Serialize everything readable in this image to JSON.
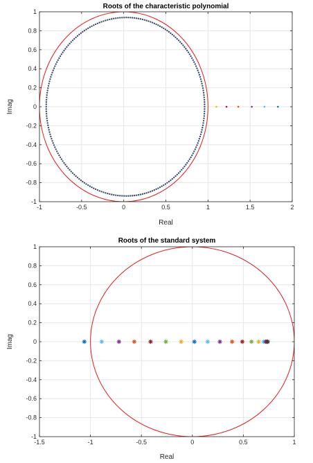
{
  "chart_data": [
    {
      "type": "scatter",
      "title": "Roots of the characteristic polynomial",
      "xlabel": "Real",
      "ylabel": "Imag",
      "xlim": [
        -1,
        2
      ],
      "ylim": [
        -1,
        1
      ],
      "xticks": [
        -1,
        -0.5,
        0,
        0.5,
        1,
        1.5,
        2
      ],
      "xtick_labels": [
        "-1",
        "-0.5",
        "0",
        "0.5",
        "1",
        "1.5",
        "2"
      ],
      "yticks": [
        -1,
        -0.8,
        -0.6,
        -0.4,
        -0.2,
        0,
        0.2,
        0.4,
        0.6,
        0.8,
        1
      ],
      "ytick_labels": [
        "-1",
        "-0.8",
        "-0.6",
        "-0.4",
        "-0.2",
        "0",
        "0.2",
        "0.4",
        "0.6",
        "0.8",
        "1"
      ],
      "grid": true,
      "unit_circle": {
        "center": [
          0,
          0
        ],
        "radius": 1,
        "color": "#e31a1c"
      },
      "root_ring": {
        "marker": "dot",
        "color": "#3a4f6b",
        "count": 240,
        "shape": "near-circle",
        "center_real": 0.03,
        "real_range": [
          -0.92,
          0.96
        ],
        "imag_range": [
          -0.94,
          0.94
        ]
      },
      "real_axis_roots": [
        {
          "x": 1.1,
          "y": 0,
          "color": "#edb120"
        },
        {
          "x": 1.22,
          "y": 0,
          "color": "#a2142f"
        },
        {
          "x": 1.36,
          "y": 0,
          "color": "#d95319"
        },
        {
          "x": 1.52,
          "y": 0,
          "color": "#7e2f8e"
        },
        {
          "x": 1.67,
          "y": 0,
          "color": "#4dbeee"
        },
        {
          "x": 1.83,
          "y": 0,
          "color": "#0072bd"
        }
      ]
    },
    {
      "type": "scatter",
      "title": "Roots of the standard system",
      "xlabel": "Real",
      "ylabel": "Imag",
      "xlim": [
        -1.5,
        1
      ],
      "ylim": [
        -1,
        1
      ],
      "xticks": [
        -1.5,
        -1,
        -0.5,
        0,
        0.5,
        1
      ],
      "xtick_labels": [
        "-1.5",
        "-1",
        "-0.5",
        "0",
        "0.5",
        "1"
      ],
      "yticks": [
        -1,
        -0.8,
        -0.6,
        -0.4,
        -0.2,
        0,
        0.2,
        0.4,
        0.6,
        0.8,
        1
      ],
      "ytick_labels": [
        "-1",
        "-0.8",
        "-0.6",
        "-0.4",
        "-0.2",
        "0",
        "0.2",
        "0.4",
        "0.6",
        "0.8",
        "1"
      ],
      "grid": true,
      "unit_circle": {
        "center": [
          0,
          0
        ],
        "radius": 1,
        "color": "#e31a1c"
      },
      "points": [
        {
          "x": -1.06,
          "y": 0,
          "color": "#0072bd"
        },
        {
          "x": -0.89,
          "y": 0,
          "color": "#4dbeee"
        },
        {
          "x": -0.72,
          "y": 0,
          "color": "#7e2f8e"
        },
        {
          "x": -0.57,
          "y": 0,
          "color": "#d95319"
        },
        {
          "x": -0.41,
          "y": 0,
          "color": "#a2142f"
        },
        {
          "x": -0.26,
          "y": 0,
          "color": "#77ac30"
        },
        {
          "x": -0.11,
          "y": 0,
          "color": "#edb120"
        },
        {
          "x": 0.02,
          "y": 0,
          "color": "#0072bd"
        },
        {
          "x": 0.15,
          "y": 0,
          "color": "#4dbeee"
        },
        {
          "x": 0.27,
          "y": 0,
          "color": "#7e2f8e"
        },
        {
          "x": 0.39,
          "y": 0,
          "color": "#d95319"
        },
        {
          "x": 0.49,
          "y": 0,
          "color": "#a2142f"
        },
        {
          "x": 0.58,
          "y": 0,
          "color": "#77ac30"
        },
        {
          "x": 0.65,
          "y": 0,
          "color": "#edb120"
        },
        {
          "x": 0.7,
          "y": 0,
          "color": "#4dbeee"
        },
        {
          "x": 0.72,
          "y": 0,
          "color": "#7e2f8e"
        },
        {
          "x": 0.73,
          "y": 0,
          "color": "#a2142f"
        },
        {
          "x": 0.74,
          "y": 0,
          "color": "#3d3d3d"
        }
      ]
    }
  ]
}
